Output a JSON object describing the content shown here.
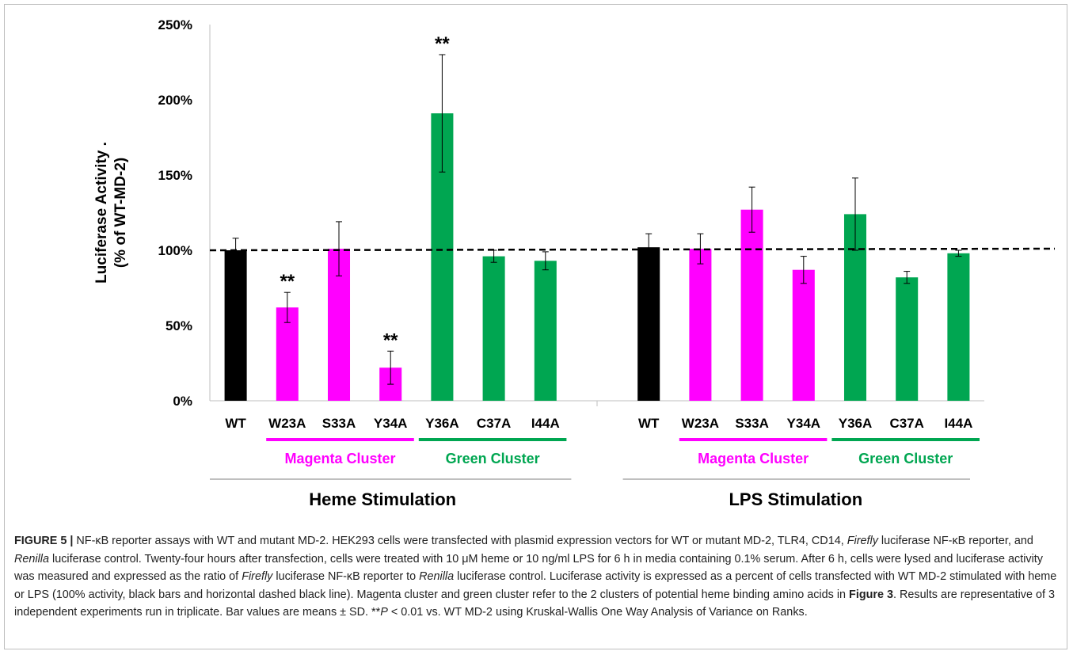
{
  "chart_data": {
    "type": "bar",
    "ylabel_line1": "Luciferase Activity .",
    "ylabel_line2": "(% of WT-MD-2)",
    "ylim": [
      0,
      250
    ],
    "yticks": [
      "0%",
      "50%",
      "100%",
      "150%",
      "200%",
      "250%"
    ],
    "ytick_values": [
      0,
      50,
      100,
      150,
      200,
      250
    ],
    "reference_line": 100,
    "grid": false,
    "colors": {
      "wt": "#000000",
      "magenta": "#ff00ff",
      "green": "#00a651"
    },
    "cluster_labels": {
      "magenta": "Magenta Cluster",
      "green": "Green Cluster"
    },
    "significance_marker": "**",
    "groups": [
      {
        "name": "Heme Stimulation",
        "bars": [
          {
            "category": "WT",
            "cluster": "wt",
            "value": 100,
            "error": 8,
            "sig": false
          },
          {
            "category": "W23A",
            "cluster": "magenta",
            "value": 62,
            "error": 10,
            "sig": true
          },
          {
            "category": "S33A",
            "cluster": "magenta",
            "value": 101,
            "error": 18,
            "sig": false
          },
          {
            "category": "Y34A",
            "cluster": "magenta",
            "value": 22,
            "error": 11,
            "sig": true
          },
          {
            "category": "Y36A",
            "cluster": "green",
            "value": 191,
            "error": 39,
            "sig": true
          },
          {
            "category": "C37A",
            "cluster": "green",
            "value": 96,
            "error": 4,
            "sig": false
          },
          {
            "category": "I44A",
            "cluster": "green",
            "value": 93,
            "error": 6,
            "sig": false
          }
        ]
      },
      {
        "name": "LPS Stimulation",
        "bars": [
          {
            "category": "WT",
            "cluster": "wt",
            "value": 102,
            "error": 9,
            "sig": false
          },
          {
            "category": "W23A",
            "cluster": "magenta",
            "value": 101,
            "error": 10,
            "sig": false
          },
          {
            "category": "S33A",
            "cluster": "magenta",
            "value": 127,
            "error": 15,
            "sig": false
          },
          {
            "category": "Y34A",
            "cluster": "magenta",
            "value": 87,
            "error": 9,
            "sig": false
          },
          {
            "category": "Y36A",
            "cluster": "green",
            "value": 124,
            "error": 24,
            "sig": false
          },
          {
            "category": "C37A",
            "cluster": "green",
            "value": 82,
            "error": 4,
            "sig": false
          },
          {
            "category": "I44A",
            "cluster": "green",
            "value": 98,
            "error": 2,
            "sig": false
          }
        ]
      }
    ]
  },
  "caption": {
    "label": "FIGURE 5 |",
    "s1": " NF-κB reporter assays with WT and mutant MD-2. HEK293 cells were transfected with plasmid expression vectors for WT or mutant MD-2, TLR4, CD14, ",
    "firefly_1": "Firefly",
    "s2": " luciferase NF-κB reporter, and ",
    "renilla_1": "Renilla",
    "s3": " luciferase control. Twenty-four hours after transfection, cells were treated with 10 μM heme or 10 ng/ml LPS for 6 h in media containing 0.1% serum. After 6 h, cells were lysed and luciferase activity was measured and expressed as the ratio of ",
    "firefly_2": "Firefly",
    "s4": " luciferase NF-κB reporter to ",
    "renilla_2": "Renilla",
    "s5": " luciferase control. Luciferase activity is expressed as a percent of cells transfected with WT MD-2 stimulated with heme or LPS (100% activity, black bars and horizontal dashed black line). Magenta cluster and green cluster refer to the 2 clusters of potential heme binding amino acids in ",
    "figure_ref": "Figure 3",
    "s6": ". Results are representative of 3 independent experiments run in triplicate. Bar values are means ± SD. **",
    "p_symbol": "P",
    "s7": " < 0.01 vs. WT MD-2 using Kruskal-Wallis One Way Analysis of Variance on Ranks."
  }
}
